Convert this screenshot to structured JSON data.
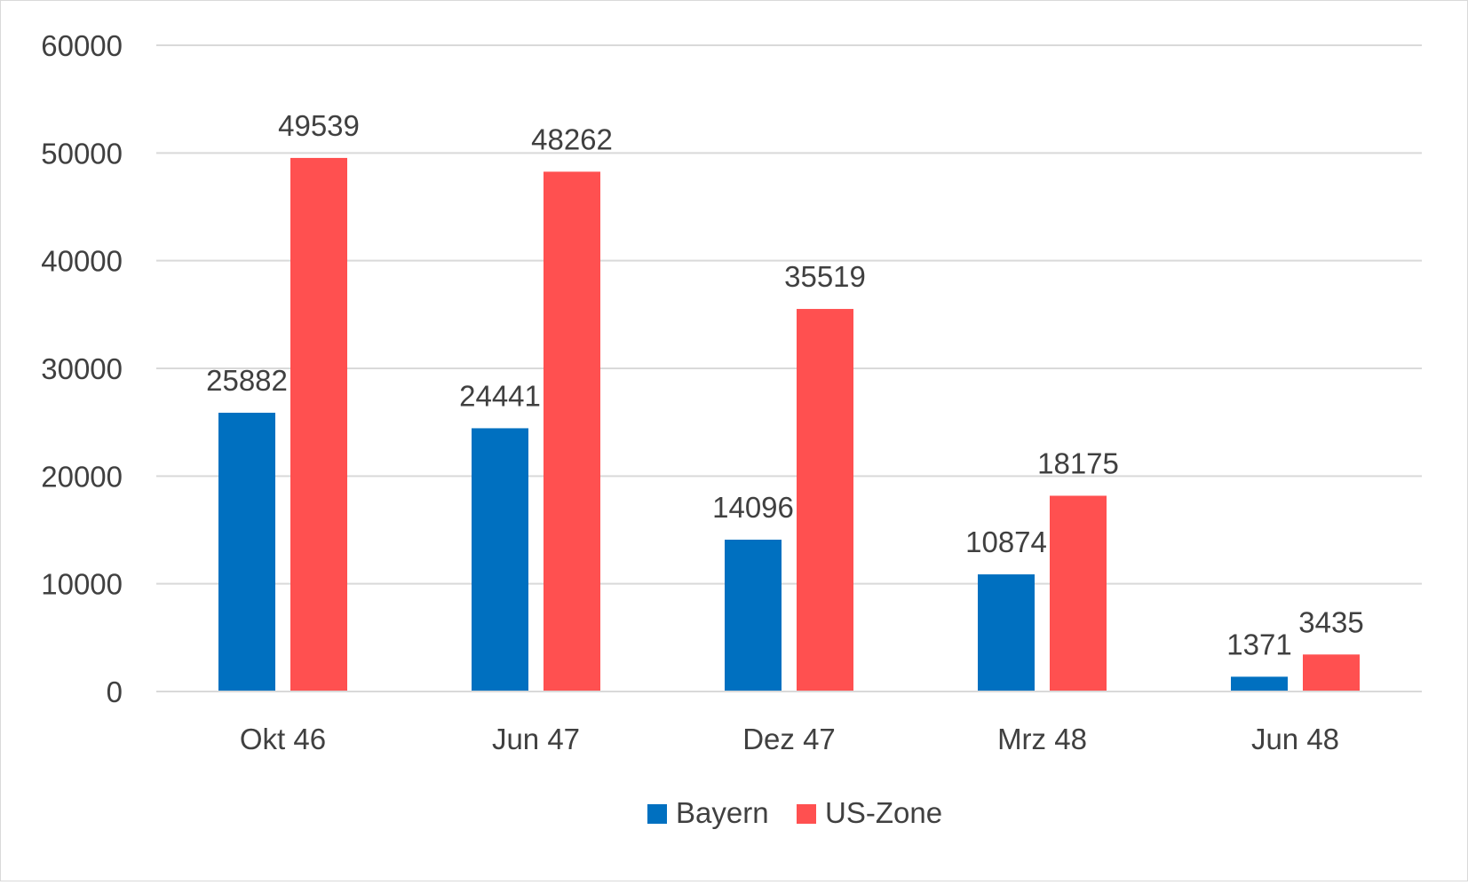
{
  "chart_data": {
    "type": "bar",
    "title": "",
    "xlabel": "",
    "ylabel": "",
    "categories": [
      "Okt 46",
      "Jun 47",
      "Dez 47",
      "Mrz 48",
      "Jun 48"
    ],
    "series": [
      {
        "name": "Bayern",
        "color": "#0070c0",
        "values": [
          25882,
          24441,
          14096,
          10874,
          1371
        ]
      },
      {
        "name": "US-Zone",
        "color": "#ff5050",
        "values": [
          49539,
          48262,
          35519,
          18175,
          3435
        ]
      }
    ],
    "ylim": [
      0,
      60000
    ],
    "yticks": [
      0,
      10000,
      20000,
      30000,
      40000,
      50000,
      60000
    ],
    "grid": true,
    "legend": "bottom-center",
    "data_labels": true
  }
}
